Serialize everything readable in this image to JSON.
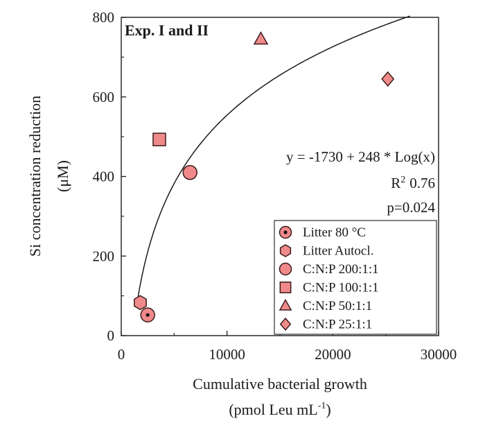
{
  "chart_data": {
    "type": "scatter",
    "title": "Exp. I and II",
    "xlabel": "Cumulative bacterial growth",
    "xlabel_unit": {
      "prefix": "(pmol Leu mL",
      "sup": "-1",
      "suffix": ")"
    },
    "ylabel": "Si concentration reduction",
    "ylabel_unit": "(μM)",
    "xlim": [
      0,
      30000
    ],
    "ylim": [
      0,
      800
    ],
    "xticks": [
      0,
      10000,
      20000,
      30000
    ],
    "xtick_labels": [
      "0",
      "10000",
      "20000",
      "30000"
    ],
    "yticks": [
      0,
      200,
      400,
      600,
      800
    ],
    "ytick_labels": [
      "0",
      "200",
      "400",
      "600",
      "800"
    ],
    "grid": false,
    "legend_position": "bottom-right",
    "marker_fill": "#f08a8a",
    "marker_stroke": "#3a1a1a",
    "series": [
      {
        "name": "Litter 80 °C",
        "marker": "circle-dot",
        "points": [
          {
            "x": 2500,
            "y": 52
          }
        ]
      },
      {
        "name": "Litter Autocl.",
        "marker": "hexagon",
        "points": [
          {
            "x": 1800,
            "y": 83
          }
        ]
      },
      {
        "name": "C:N:P 200:1:1",
        "marker": "circle",
        "points": [
          {
            "x": 6500,
            "y": 410
          }
        ]
      },
      {
        "name": "C:N:P 100:1:1",
        "marker": "square",
        "points": [
          {
            "x": 3600,
            "y": 493
          }
        ]
      },
      {
        "name": "C:N:P 50:1:1",
        "marker": "triangle",
        "points": [
          {
            "x": 13200,
            "y": 745
          }
        ]
      },
      {
        "name": "C:N:P 25:1:1",
        "marker": "diamond",
        "points": [
          {
            "x": 25200,
            "y": 645
          }
        ]
      }
    ],
    "fit": {
      "equation_text": "y = -1730 + 248 * Log(x)",
      "r2_prefix": "R",
      "r2_sup": "2",
      "r2_value": "0.76",
      "p_text": "p=0.024",
      "intercept": -1730,
      "slope": 248,
      "x_range": [
        1500,
        27300
      ]
    }
  }
}
